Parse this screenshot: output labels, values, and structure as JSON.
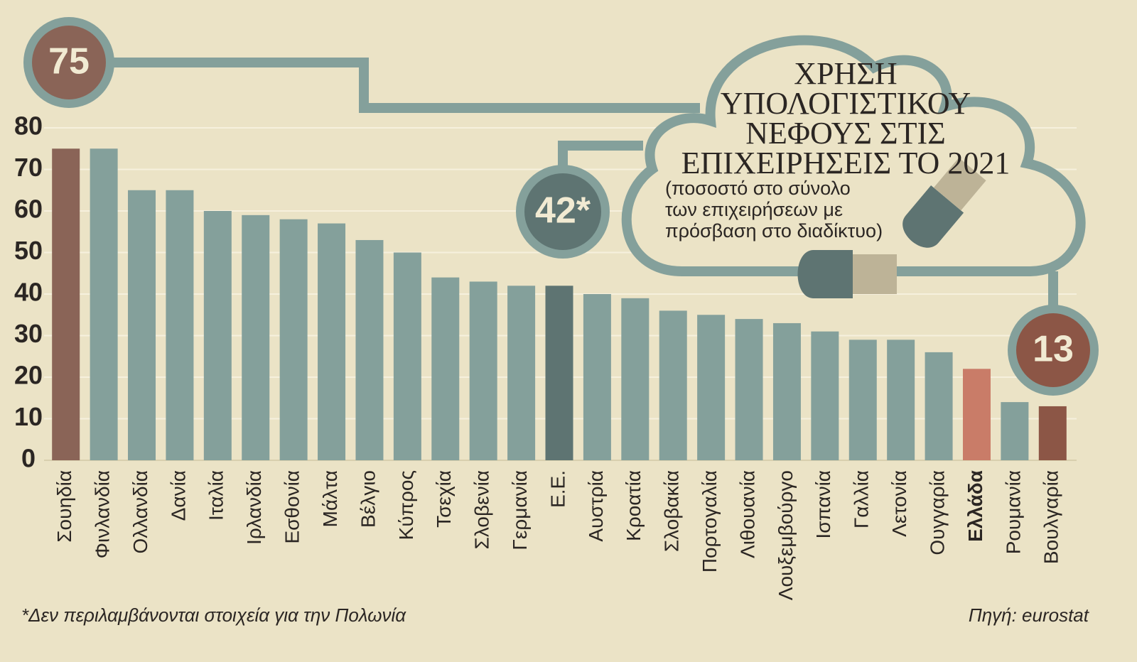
{
  "chart_data": {
    "type": "bar",
    "title": [
      "ΧΡΗΣΗ",
      "ΥΠΟΛΟΓΙΣΤΙΚΟΥ",
      "ΝΕΦΟΥΣ ΣΤΙΣ",
      "ΕΠΙΧΕΙΡΗΣΕΙΣ ΤΟ 2021"
    ],
    "subtitle": [
      "(ποσοστό στο σύνολο",
      "των επιχειρήσεων με",
      "πρόσβαση στο διαδίκτυο)"
    ],
    "annotations": [
      "75",
      "42*",
      "13"
    ],
    "footnote": "*Δεν περιλαμβάνονται στοιχεία για την Πολωνία",
    "source": "Πηγή: eurostat",
    "categories": [
      "Σουηδία",
      "Φινλανδία",
      "Ολλανδία",
      "Δανία",
      "Ιταλία",
      "Ιρλανδία",
      "Εσθονία",
      "Μάλτα",
      "Βέλγιο",
      "Κύπρος",
      "Τσεχία",
      "Σλοβενία",
      "Γερμανία",
      "Ε.Ε.",
      "Αυστρία",
      "Κροατία",
      "Σλοβακία",
      "Πορτογαλία",
      "Λιθουανία",
      "Λουξεμβούργο",
      "Ισπανία",
      "Γαλλία",
      "Λετονία",
      "Ουγγαρία",
      "Ελλάδα",
      "Ρουμανία",
      "Βουλγαρία"
    ],
    "values": [
      75,
      75,
      65,
      65,
      60,
      59,
      58,
      57,
      53,
      50,
      44,
      43,
      42,
      42,
      40,
      39,
      36,
      35,
      34,
      33,
      31,
      29,
      29,
      26,
      22,
      14,
      13
    ],
    "colors": [
      "#8a6457",
      "#84a09b",
      "#84a09b",
      "#84a09b",
      "#84a09b",
      "#84a09b",
      "#84a09b",
      "#84a09b",
      "#84a09b",
      "#84a09b",
      "#84a09b",
      "#84a09b",
      "#84a09b",
      "#5e7472",
      "#84a09b",
      "#84a09b",
      "#84a09b",
      "#84a09b",
      "#84a09b",
      "#84a09b",
      "#84a09b",
      "#84a09b",
      "#84a09b",
      "#84a09b",
      "#c97c68",
      "#84a09b",
      "#8c5646"
    ],
    "ylim": [
      0,
      80
    ],
    "yticks": [
      0,
      10,
      20,
      30,
      40,
      50,
      60,
      70,
      80
    ],
    "grid": true
  }
}
